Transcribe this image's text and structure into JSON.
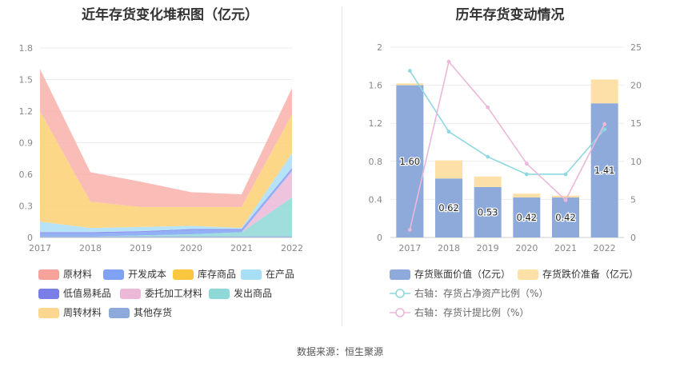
{
  "left_title": "近年存货变化堆积图（亿元）",
  "right_title": "历年存货变动情况",
  "source": "数据来源：恒生聚源",
  "chart_data": [
    {
      "type": "area",
      "stacked": true,
      "title": "近年存货变化堆积图（亿元）",
      "categories": [
        "2017",
        "2018",
        "2019",
        "2020",
        "2021",
        "2022"
      ],
      "y_ticks": [
        "0",
        "0.3",
        "0.6",
        "0.9",
        "1.2",
        "1.5",
        "1.8"
      ],
      "ylim": [
        0,
        1.8
      ],
      "grid": true,
      "legend_position": "bottom",
      "series": [
        {
          "name": "其他存货",
          "color": "#8eaadb",
          "values": [
            0.01,
            0.01,
            0.01,
            0.01,
            0.01,
            0.01
          ]
        },
        {
          "name": "发出商品",
          "color": "#8fd8d8",
          "values": [
            0.0,
            0.0,
            0.01,
            0.02,
            0.04,
            0.37
          ]
        },
        {
          "name": "委托加工材料",
          "color": "#ebb8d8",
          "values": [
            0.0,
            0.0,
            0.0,
            0.0,
            0.0,
            0.25
          ]
        },
        {
          "name": "开发成本",
          "color": "#7fa2f5",
          "values": [
            0.03,
            0.03,
            0.03,
            0.04,
            0.02,
            0.02
          ]
        },
        {
          "name": "低值易耗品",
          "color": "#7a7fe8",
          "values": [
            0.01,
            0.01,
            0.01,
            0.01,
            0.01,
            0.01
          ]
        },
        {
          "name": "在产品",
          "color": "#a9def7",
          "values": [
            0.1,
            0.04,
            0.04,
            0.03,
            0.01,
            0.14
          ]
        },
        {
          "name": "周转材料",
          "color": "#fdd68f",
          "values": [
            0.0,
            0.0,
            0.0,
            0.0,
            0.0,
            0.0
          ]
        },
        {
          "name": "库存商品",
          "color": "#fdd073",
          "values": [
            1.05,
            0.25,
            0.19,
            0.18,
            0.2,
            0.37
          ]
        },
        {
          "name": "原材料",
          "color": "#f9b0aa",
          "values": [
            0.4,
            0.28,
            0.24,
            0.14,
            0.12,
            0.25
          ]
        }
      ],
      "legend": [
        {
          "name": "原材料",
          "color": "#f6a39c"
        },
        {
          "name": "开发成本",
          "color": "#7fa2f5"
        },
        {
          "name": "库存商品",
          "color": "#fbc740"
        },
        {
          "name": "在产品",
          "color": "#a9def7"
        },
        {
          "name": "低值易耗品",
          "color": "#7a7fe8"
        },
        {
          "name": "委托加工材料",
          "color": "#ebb8d8"
        },
        {
          "name": "发出商品",
          "color": "#8fd8d8"
        },
        {
          "name": "周转材料",
          "color": "#fdd68f"
        },
        {
          "name": "其他存货",
          "color": "#8eaadb"
        }
      ]
    },
    {
      "type": "bar",
      "stacked": true,
      "title": "历年存货变动情况",
      "categories": [
        "2017",
        "2018",
        "2019",
        "2020",
        "2021",
        "2022"
      ],
      "y_ticks": [
        "0",
        "0.4",
        "0.8",
        "1.2",
        "1.6",
        "2"
      ],
      "ylim": [
        0,
        2
      ],
      "y2_ticks": [
        "0",
        "5",
        "10",
        "15",
        "20",
        "25"
      ],
      "y2lim": [
        0,
        25
      ],
      "grid": true,
      "legend_position": "bottom",
      "series": [
        {
          "name": "存货账面价值（亿元）",
          "color": "#8eaadb",
          "values": [
            1.6,
            0.62,
            0.53,
            0.42,
            0.42,
            1.41
          ],
          "labels": [
            "1.60",
            "0.62",
            "0.53",
            "0.42",
            "0.42",
            "1.41"
          ]
        },
        {
          "name": "存货跌价准备（亿元）",
          "color": "#fde0a8",
          "values": [
            0.02,
            0.19,
            0.11,
            0.04,
            0.02,
            0.25
          ]
        }
      ],
      "lines": [
        {
          "name": "右轴：存货占净资产比例（%）",
          "color": "#8fd8e0",
          "axis": "right",
          "values": [
            21.9,
            13.9,
            10.6,
            8.3,
            8.3,
            14.2
          ]
        },
        {
          "name": "右轴：存货计提比例（%）",
          "color": "#ebb8d8",
          "axis": "right",
          "values": [
            1.0,
            23.1,
            17.1,
            9.7,
            4.9,
            14.9
          ]
        }
      ]
    }
  ]
}
